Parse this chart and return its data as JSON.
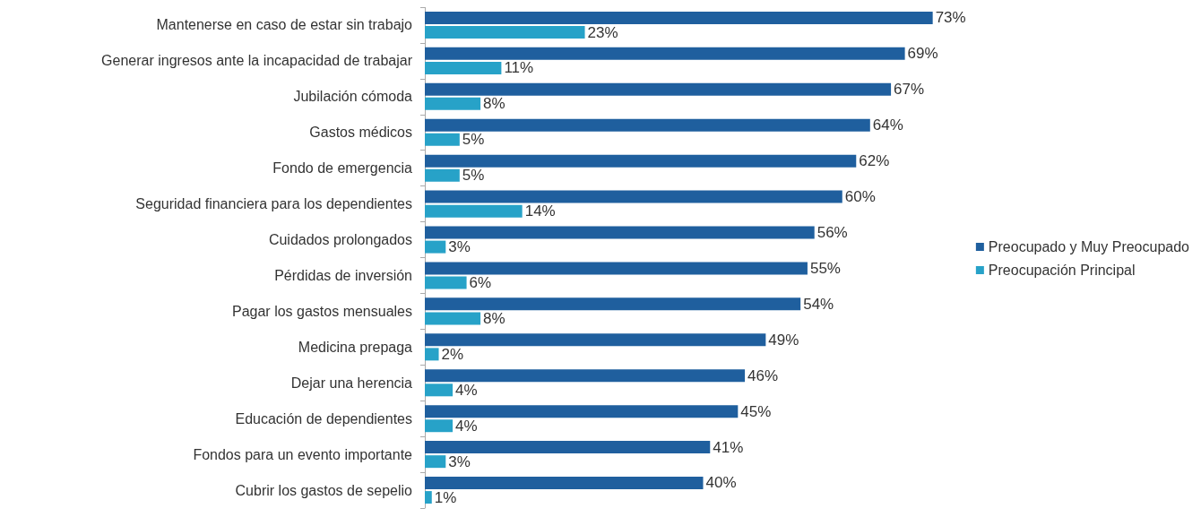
{
  "chart_data": {
    "type": "bar",
    "orientation": "horizontal",
    "legend": "right",
    "grid": false,
    "categories": [
      "Mantenerse en caso de estar sin trabajo",
      "Generar ingresos ante la incapacidad de trabajar",
      "Jubilación cómoda",
      "Gastos médicos",
      "Fondo de emergencia",
      "Seguridad financiera para los dependientes",
      "Cuidados prolongados",
      "Pérdidas de inversión",
      "Pagar los gastos mensuales",
      "Medicina prepaga",
      "Dejar una herencia",
      "Educación de dependientes",
      "Fondos para un evento importante",
      "Cubrir los gastos de sepelio"
    ],
    "series": [
      {
        "name": "Preocupado y Muy Preocupado",
        "color": "#1f5f9e",
        "values": [
          73,
          69,
          67,
          64,
          62,
          60,
          56,
          55,
          54,
          49,
          46,
          45,
          41,
          40
        ],
        "value_labels": [
          "73%",
          "69%",
          "67%",
          "64%",
          "62%",
          "60%",
          "56%",
          "55%",
          "54%",
          "49%",
          "46%",
          "45%",
          "41%",
          "40%"
        ]
      },
      {
        "name": "Preocupación Principal",
        "color": "#27a2c8",
        "values": [
          23,
          11,
          8,
          5,
          5,
          14,
          3,
          6,
          8,
          2,
          4,
          4,
          3,
          1
        ],
        "value_labels": [
          "23%",
          "11%",
          "8%",
          "5%",
          "5%",
          "14%",
          "3%",
          "6%",
          "8%",
          "2%",
          "4%",
          "4%",
          "3%",
          "1%"
        ]
      }
    ]
  }
}
